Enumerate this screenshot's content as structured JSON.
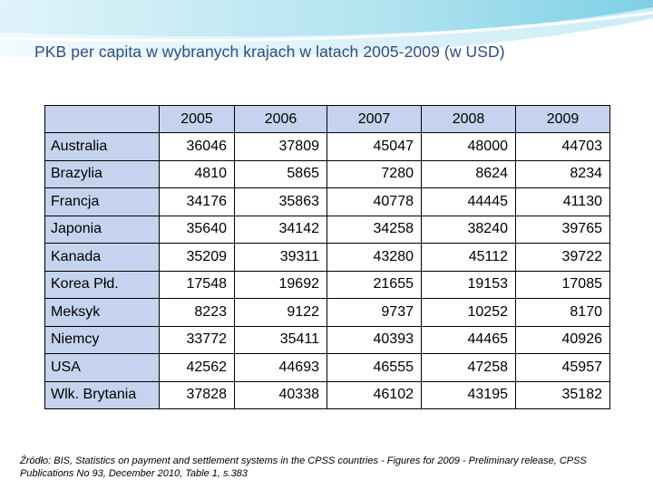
{
  "title": "PKB per capita w wybranych krajach w latach 2005-2009 (w USD)",
  "table": {
    "years": [
      "2005",
      "2006",
      "2007",
      "2008",
      "2009"
    ],
    "rows": [
      {
        "country": "Australia",
        "values": [
          "36046",
          "37809",
          "45047",
          "48000",
          "44703"
        ]
      },
      {
        "country": "Brazylia",
        "values": [
          "4810",
          "5865",
          "7280",
          "8624",
          "8234"
        ]
      },
      {
        "country": "Francja",
        "values": [
          "34176",
          "35863",
          "40778",
          "44445",
          "41130"
        ]
      },
      {
        "country": "Japonia",
        "values": [
          "35640",
          "34142",
          "34258",
          "38240",
          "39765"
        ]
      },
      {
        "country": "Kanada",
        "values": [
          "35209",
          "39311",
          "43280",
          "45112",
          "39722"
        ]
      },
      {
        "country": "Korea Płd.",
        "values": [
          "17548",
          "19692",
          "21655",
          "19153",
          "17085"
        ]
      },
      {
        "country": "Meksyk",
        "values": [
          "8223",
          "9122",
          "9737",
          "10252",
          "8170"
        ]
      },
      {
        "country": "Niemcy",
        "values": [
          "33772",
          "35411",
          "40393",
          "44465",
          "40926"
        ]
      },
      {
        "country": "USA",
        "values": [
          "42562",
          "44693",
          "46555",
          "47258",
          "45957"
        ]
      },
      {
        "country": "Wlk. Brytania",
        "values": [
          "37828",
          "40338",
          "46102",
          "43195",
          "35182"
        ]
      }
    ]
  },
  "source": "Źródło: BIS, Statistics on payment and settlement systems in the CPSS countries - Figures for 2009 - Preliminary release, CPSS Publications No 93, December 2010, Table 1, s.383",
  "colors": {
    "header_fill": "#c6d3ee",
    "title": "#2d4d83",
    "swoosh": "#7fd3e8"
  }
}
